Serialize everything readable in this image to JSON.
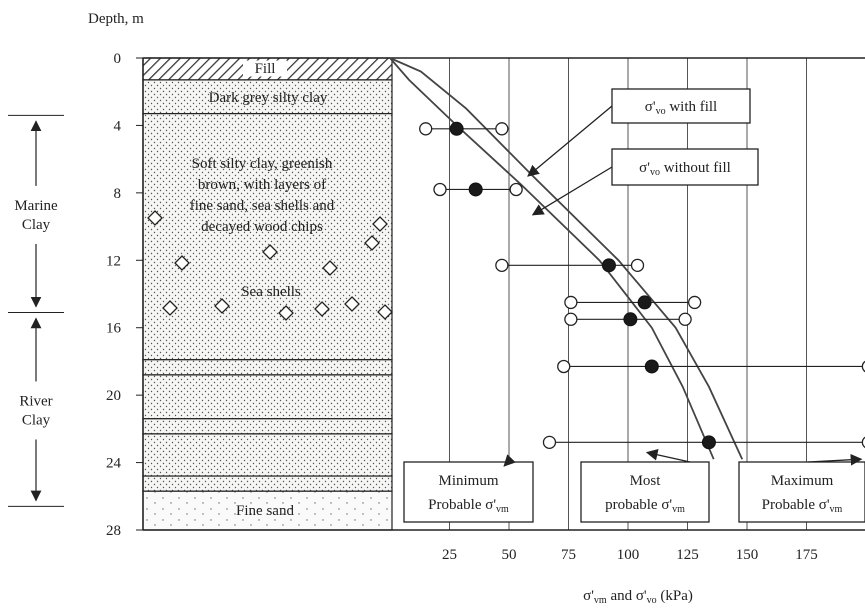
{
  "chart_data": {
    "type": "scatter",
    "ylabel": "Depth, m",
    "xlabel": "σ'vm and σ'vo (kPa)",
    "xlim": [
      0,
      200
    ],
    "ylim": [
      0,
      28
    ],
    "y_inverted": true,
    "x_ticks": [
      25,
      50,
      75,
      100,
      125,
      150,
      175
    ],
    "y_ticks": [
      0,
      4,
      8,
      12,
      16,
      20,
      24,
      28
    ],
    "grid": "vertical",
    "soil_layers": [
      {
        "name": "Fill",
        "top": 0,
        "bottom": 1.3,
        "pattern": "hatch"
      },
      {
        "name": "Dark grey silty clay",
        "top": 1.3,
        "bottom": 3.3,
        "pattern": "dots"
      },
      {
        "name": "Soft silty clay, greenish brown, with layers of fine sand, sea shells and decayed wood chips",
        "top": 3.3,
        "bottom": 17.9,
        "pattern": "dots"
      },
      {
        "name": "",
        "top": 17.9,
        "bottom": 18.8,
        "pattern": "dots"
      },
      {
        "name": "",
        "top": 18.8,
        "bottom": 21.4,
        "pattern": "dots"
      },
      {
        "name": "",
        "top": 21.4,
        "bottom": 22.3,
        "pattern": "dots"
      },
      {
        "name": "",
        "top": 22.3,
        "bottom": 24.8,
        "pattern": "dots"
      },
      {
        "name": "",
        "top": 24.8,
        "bottom": 25.7,
        "pattern": "dots"
      },
      {
        "name": "Fine sand",
        "top": 25.7,
        "bottom": 28,
        "pattern": "sparse"
      }
    ],
    "sea_shells_label": "Sea shells",
    "zones": [
      {
        "name": "Marine Clay",
        "top": 3.4,
        "bottom": 15.1
      },
      {
        "name": "River Clay",
        "top": 15.1,
        "bottom": 26.6
      }
    ],
    "stress_lines": [
      {
        "name": "σ'vo with fill",
        "points": [
          [
            0,
            0
          ],
          [
            13,
            0.8
          ],
          [
            32,
            3
          ],
          [
            60,
            7
          ],
          [
            96,
            12
          ],
          [
            120,
            16
          ],
          [
            134,
            19.5
          ],
          [
            148,
            23.8
          ]
        ]
      },
      {
        "name": "σ'vo without fill",
        "points": [
          [
            0,
            0
          ],
          [
            8,
            1.3
          ],
          [
            28,
            4
          ],
          [
            55,
            7.5
          ],
          [
            88,
            12
          ],
          [
            110,
            16
          ],
          [
            123,
            19.5
          ],
          [
            136,
            23.8
          ]
        ]
      }
    ],
    "sigma_vm": [
      {
        "depth": 4.2,
        "min": 15,
        "probable": 28,
        "max": 47
      },
      {
        "depth": 7.8,
        "min": 21,
        "probable": 36,
        "max": 53
      },
      {
        "depth": 12.3,
        "min": 47,
        "probable": 92,
        "max": 104
      },
      {
        "depth": 14.5,
        "min": 76,
        "probable": 107,
        "max": 128
      },
      {
        "depth": 15.5,
        "min": 76,
        "probable": 101,
        "max": 124
      },
      {
        "depth": 18.3,
        "min": 73,
        "probable": 110,
        "max": 201
      },
      {
        "depth": 22.8,
        "min": 67,
        "probable": 134,
        "max": 201
      }
    ],
    "annotations": [
      {
        "id": "with-fill",
        "text": "σ'vo with fill",
        "base": "σ'",
        "sub": "vo",
        "suffix": " with fill",
        "target": [
          58,
          7
        ]
      },
      {
        "id": "without-fill",
        "text": "σ'vo without fill",
        "base": "σ'",
        "sub": "vo",
        "suffix": " without fill",
        "target": [
          60,
          9.3
        ]
      },
      {
        "id": "minimum",
        "line1": "Minimum",
        "line2": "Probable σ'vm",
        "base": "Probable σ'",
        "sub": "vm",
        "target": [
          48,
          24.2
        ]
      },
      {
        "id": "most",
        "line1": "Most",
        "line2": "probable σ'vm",
        "base": "probable σ'",
        "sub": "vm",
        "target": [
          108,
          23.4
        ]
      },
      {
        "id": "maximum",
        "line1": "Maximum",
        "line2": "Probable σ'vm",
        "base": "Probable σ'",
        "sub": "vm",
        "target": [
          198,
          23.8
        ]
      }
    ]
  }
}
